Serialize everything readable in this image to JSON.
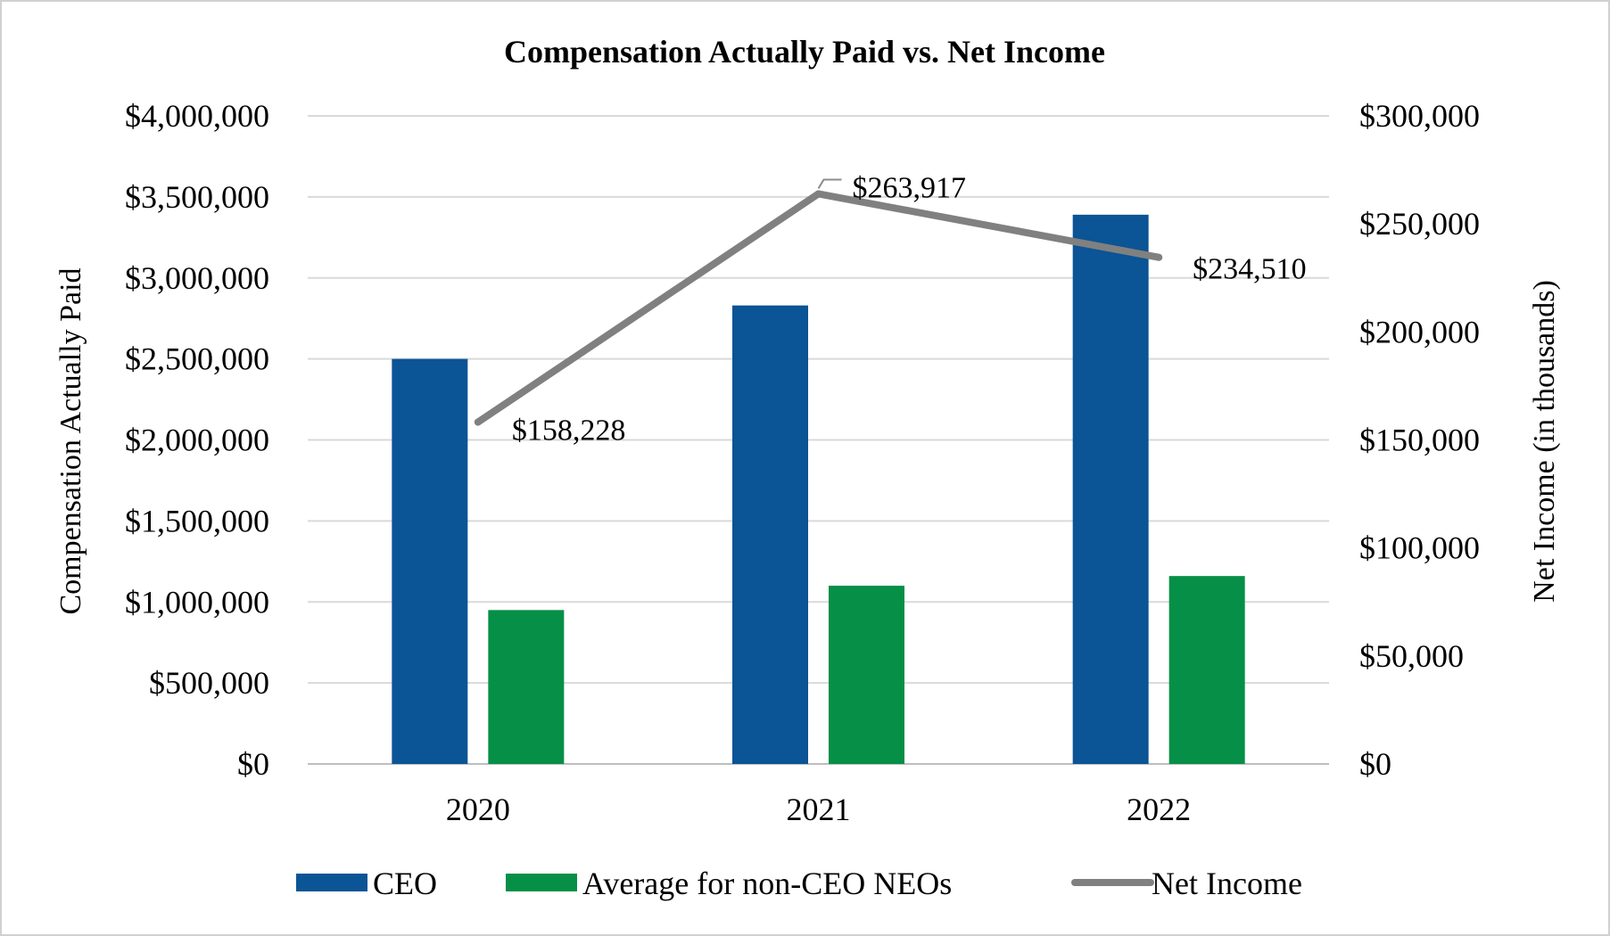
{
  "chart_data": {
    "type": "bar",
    "title": "Compensation Actually Paid vs. Net Income",
    "categories": [
      "2020",
      "2021",
      "2022"
    ],
    "series": [
      {
        "name": "CEO",
        "type": "bar",
        "axis": "left",
        "color": "#0b5495",
        "values": [
          2500000,
          2830000,
          3390000
        ]
      },
      {
        "name": "Average for non-CEO NEOs",
        "type": "bar",
        "axis": "left",
        "color": "#068f47",
        "values": [
          950000,
          1100000,
          1160000
        ]
      },
      {
        "name": "Net Income",
        "type": "line",
        "axis": "right",
        "color": "#808080",
        "values": [
          158228,
          263917,
          234510
        ],
        "data_labels": [
          "$158,228",
          "$263,917",
          "$234,510"
        ]
      }
    ],
    "ylabel": "Compensation Actually Paid",
    "ylim": [
      0,
      4000000
    ],
    "yticks": [
      0,
      500000,
      1000000,
      1500000,
      2000000,
      2500000,
      3000000,
      3500000,
      4000000
    ],
    "ytick_labels": [
      "$0",
      "$500,000",
      "$1,000,000",
      "$1,500,000",
      "$2,000,000",
      "$2,500,000",
      "$3,000,000",
      "$3,500,000",
      "$4,000,000"
    ],
    "y2label": "Net Income (in thousands)",
    "y2lim": [
      0,
      300000
    ],
    "y2ticks": [
      0,
      50000,
      100000,
      150000,
      200000,
      250000,
      300000
    ],
    "y2tick_labels": [
      "$0",
      "$50,000",
      "$100,000",
      "$150,000",
      "$200,000",
      "$250,000",
      "$300,000"
    ],
    "grid": true,
    "legend_position": "bottom"
  }
}
